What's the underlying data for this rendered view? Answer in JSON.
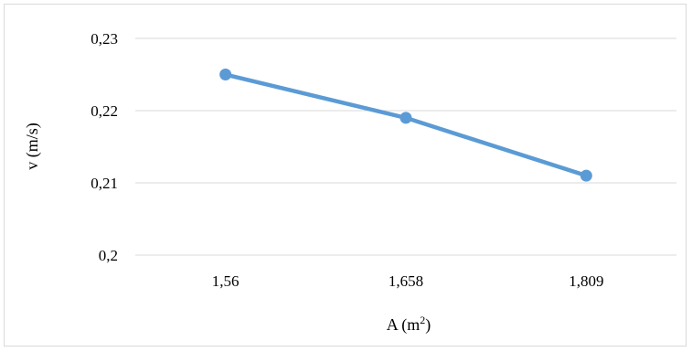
{
  "chart_data": {
    "type": "line",
    "categories": [
      "1,56",
      "1,658",
      "1,809"
    ],
    "series": [
      {
        "values": [
          0.225,
          0.219,
          0.211
        ],
        "color": "#5b9bd5"
      }
    ],
    "ylim": [
      0.2,
      0.23
    ],
    "ytick_values": [
      0.2,
      0.21,
      0.22,
      0.23
    ],
    "ytick_labels": [
      "0,2",
      "0,21",
      "0,22",
      "0,23"
    ],
    "xlabel": "A (m",
    "xlabel_sup": "2",
    "xlabel_close": ")",
    "ylabel": "v (m/s)",
    "grid": true,
    "gridline_color": "#d9d9d9",
    "legend": "none"
  }
}
